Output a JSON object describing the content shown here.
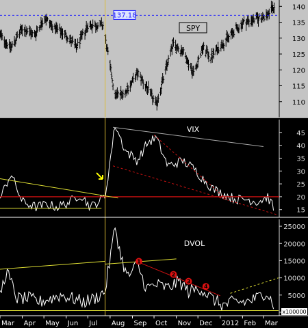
{
  "chart_data": [
    {
      "type": "line",
      "title": "SPY",
      "price_label": "137.18",
      "ylim": [
        105,
        142
      ],
      "y_ticks": [
        "140",
        "135",
        "130",
        "125",
        "120",
        "115",
        "110"
      ],
      "series": [
        {
          "name": "SPY",
          "style": "ohlc-bars",
          "x": [
            "2011-03-01",
            "2011-03-16",
            "2011-04-01",
            "2011-04-18",
            "2011-05-02",
            "2011-05-16",
            "2011-06-01",
            "2011-06-15",
            "2011-07-01",
            "2011-07-22",
            "2011-08-08",
            "2011-08-22",
            "2011-09-09",
            "2011-09-22",
            "2011-10-04",
            "2011-10-27",
            "2011-11-10",
            "2011-11-25",
            "2011-12-08",
            "2011-12-19",
            "2012-01-03",
            "2012-01-20",
            "2012-02-03",
            "2012-02-20",
            "2012-03-05",
            "2012-03-16"
          ],
          "values": [
            131,
            127,
            133,
            131,
            136.5,
            133,
            131,
            127,
            134,
            134,
            112,
            113,
            119,
            114,
            109,
            128,
            126,
            119,
            127,
            124,
            128,
            132,
            135,
            136,
            137,
            140
          ]
        }
      ],
      "reference_lines": [
        {
          "label": "137.18",
          "value": 137.18,
          "style": "dashed",
          "color": "#1a1aff"
        }
      ],
      "marker_date": "2011-07-25"
    },
    {
      "type": "line",
      "title": "VIX",
      "ylim": [
        12,
        50
      ],
      "y_ticks": [
        "45",
        "40",
        "35",
        "30",
        "25",
        "20",
        "15"
      ],
      "series": [
        {
          "name": "VIX",
          "x": [
            "2011-03-01",
            "2011-03-16",
            "2011-04-01",
            "2011-04-20",
            "2011-05-05",
            "2011-05-20",
            "2011-06-06",
            "2011-06-20",
            "2011-07-05",
            "2011-07-25",
            "2011-08-08",
            "2011-08-22",
            "2011-09-08",
            "2011-09-22",
            "2011-10-04",
            "2011-10-20",
            "2011-11-10",
            "2011-11-25",
            "2011-12-08",
            "2011-12-22",
            "2012-01-06",
            "2012-01-23",
            "2012-02-08",
            "2012-02-22",
            "2012-03-07",
            "2012-03-16"
          ],
          "values": [
            19,
            29,
            18,
            16,
            17,
            16,
            18,
            21,
            16,
            20,
            48,
            38,
            34,
            41,
            43,
            32,
            34,
            31,
            27,
            23,
            21,
            19,
            19,
            18,
            20,
            15
          ]
        }
      ],
      "reference_lines": [
        {
          "value": 20,
          "color": "#cc1111"
        }
      ],
      "trendlines": [
        {
          "color": "#dddd33",
          "from": [
            "2011-03-01",
            27
          ],
          "to": [
            "2011-08-12",
            19.5
          ]
        },
        {
          "color": "#dddd33",
          "from": [
            "2011-03-01",
            15.5
          ],
          "to": [
            "2011-07-20",
            15.5
          ]
        },
        {
          "color": "#aaaaaa",
          "from": [
            "2011-08-05",
            47
          ],
          "to": [
            "2012-03-01",
            39.5
          ]
        },
        {
          "color": "#cc1111",
          "style": "dashed",
          "from": [
            "2011-08-05",
            32
          ],
          "to": [
            "2012-03-20",
            13
          ]
        },
        {
          "color": "#cc1111",
          "style": "dashed",
          "from": [
            "2011-10-01",
            44
          ],
          "to": [
            "2012-01-10",
            19
          ]
        }
      ],
      "annotations": [
        {
          "kind": "arrow",
          "color": "#ffff00"
        }
      ]
    },
    {
      "type": "line",
      "title": "DVOL",
      "ylim": [
        -1000,
        27000
      ],
      "y_ticks": [
        "25000",
        "20000",
        "15000",
        "10000",
        "5000",
        "0"
      ],
      "multiplier_label": "x100000",
      "series": [
        {
          "name": "DVOL",
          "x": [
            "2011-03-01",
            "2011-03-10",
            "2011-03-25",
            "2011-04-10",
            "2011-04-25",
            "2011-05-10",
            "2011-05-25",
            "2011-06-10",
            "2011-06-25",
            "2011-07-10",
            "2011-07-25",
            "2011-08-08",
            "2011-08-15",
            "2011-08-25",
            "2011-09-08",
            "2011-09-20",
            "2011-10-05",
            "2011-10-20",
            "2011-11-05",
            "2011-11-18",
            "2011-12-05",
            "2011-12-20",
            "2012-01-05",
            "2012-01-20",
            "2012-02-05",
            "2012-02-20",
            "2012-03-05",
            "2012-03-16"
          ],
          "values": [
            5000,
            12000,
            4000,
            4000,
            3000,
            4000,
            5000,
            4000,
            3000,
            4000,
            6000,
            25000,
            17000,
            10000,
            14000,
            7000,
            8000,
            7000,
            9000,
            6000,
            7000,
            4000,
            2000,
            3000,
            3000,
            4000,
            6000,
            2000
          ]
        }
      ],
      "trendlines": [
        {
          "color": "#dddd33",
          "from": [
            "2011-03-01",
            12500
          ],
          "to": [
            "2011-07-25",
            14800
          ]
        },
        {
          "color": "#dddd33",
          "from": [
            "2011-07-25",
            14000
          ],
          "to": [
            "2011-11-01",
            15500
          ]
        },
        {
          "color": "#dddd33",
          "style": "dashed",
          "from": [
            "2012-01-15",
            5500
          ],
          "to": [
            "2012-03-22",
            10000
          ]
        },
        {
          "color": "#cc1111",
          "from": [
            "2011-09-10",
            14500
          ],
          "to": [
            "2012-01-01",
            4800
          ]
        },
        {
          "color": "#dddd33",
          "from": [
            "2011-03-01",
            500
          ],
          "to": [
            "2012-03-22",
            500
          ]
        }
      ],
      "markers": [
        {
          "label": "1",
          "x": "2011-09-10",
          "y": 14800
        },
        {
          "label": "2",
          "x": "2011-10-28",
          "y": 11000
        },
        {
          "label": "3",
          "x": "2011-11-18",
          "y": 9000
        },
        {
          "label": "4",
          "x": "2011-12-12",
          "y": 7500
        }
      ]
    }
  ],
  "x_axis": {
    "labels": [
      {
        "text": "Mar",
        "date": "2011-03-01"
      },
      {
        "text": "Apr",
        "date": "2011-04-01"
      },
      {
        "text": "May",
        "date": "2011-05-01"
      },
      {
        "text": "Jun",
        "date": "2011-06-01"
      },
      {
        "text": "Jul",
        "date": "2011-07-01"
      },
      {
        "text": "Aug",
        "date": "2011-08-01"
      },
      {
        "text": "Sep",
        "date": "2011-09-01"
      },
      {
        "text": "Oct",
        "date": "2011-10-01"
      },
      {
        "text": "Nov",
        "date": "2011-11-01"
      },
      {
        "text": "Dec",
        "date": "2011-12-01"
      },
      {
        "text": "2012",
        "date": "2012-01-01"
      },
      {
        "text": "Feb",
        "date": "2012-02-01"
      },
      {
        "text": "Mar",
        "date": "2012-03-01"
      }
    ],
    "range": [
      "2011-03-01",
      "2012-03-23"
    ]
  },
  "colors": {
    "top_background": "#c4c4c4",
    "dark_background": "#000000",
    "line_white": "#ffffff",
    "price_bars": "#000000",
    "price_line": "#1a1aff",
    "label_box": "#dde4ff",
    "marker_red": "#dd1111",
    "vertical_marker": "#ddbb33",
    "axis_text_dark": "#000000",
    "axis_text_light": "#d8d8d8"
  }
}
